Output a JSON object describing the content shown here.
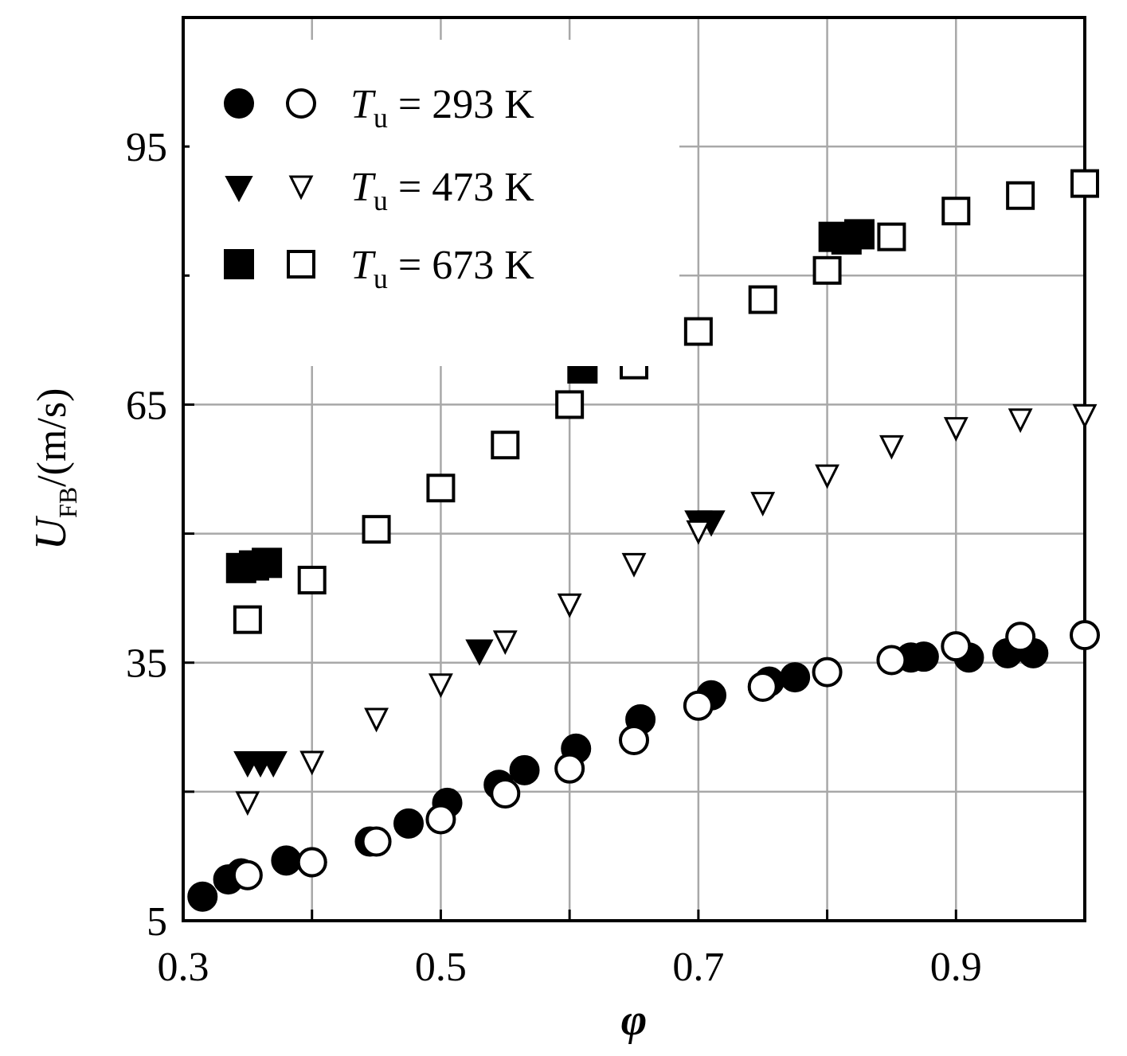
{
  "chart_data": {
    "type": "scatter",
    "xlabel": "φ",
    "ylabel": {
      "main": "U",
      "sub": "FB",
      "rest": "/(m/s)"
    },
    "xlim": [
      0.3,
      1.0
    ],
    "ylim": [
      5,
      110
    ],
    "xticks": [
      0.3,
      0.4,
      0.5,
      0.6,
      0.7,
      0.8,
      0.9,
      1.0
    ],
    "yticks": [
      5,
      20,
      35,
      50,
      65,
      80,
      95,
      110
    ],
    "xtick_labels": [
      "0.3",
      "0.5",
      "0.7",
      "0.9"
    ],
    "ytick_labels": [
      "5",
      "35",
      "65",
      "95"
    ],
    "grid": true,
    "legend_position": "top-left",
    "legend": [
      {
        "var": "T",
        "sub": "u",
        "text": "= 293 K"
      },
      {
        "var": "T",
        "sub": "u",
        "text": "= 473 K"
      },
      {
        "var": "T",
        "sub": "u",
        "text": "= 673 K"
      }
    ],
    "series": [
      {
        "marker": "circle",
        "fill": "filled",
        "x": [
          0.315,
          0.335,
          0.345,
          0.38,
          0.4,
          0.445,
          0.475,
          0.505,
          0.545,
          0.565,
          0.605,
          0.655,
          0.71,
          0.755,
          0.775,
          0.865,
          0.875,
          0.91,
          0.94,
          0.96
        ],
        "y": [
          7.8,
          9.8,
          10.5,
          12.0,
          11.8,
          14.2,
          16.3,
          18.7,
          20.8,
          22.5,
          25.0,
          28.4,
          31.2,
          32.8,
          33.3,
          35.6,
          35.7,
          35.6,
          36.1,
          36.1
        ]
      },
      {
        "marker": "circle",
        "fill": "open",
        "x": [
          0.35,
          0.4,
          0.45,
          0.5,
          0.55,
          0.6,
          0.65,
          0.7,
          0.75,
          0.8,
          0.85,
          0.9,
          0.95,
          1.0
        ],
        "y": [
          10.3,
          11.8,
          14.2,
          16.8,
          19.8,
          22.7,
          26.0,
          30.0,
          32.2,
          33.9,
          35.3,
          36.9,
          38.0,
          38.2
        ]
      },
      {
        "marker": "triangle-down",
        "fill": "filled",
        "x": [
          0.35,
          0.36,
          0.37,
          0.53,
          0.7,
          0.71
        ],
        "y": [
          23.5,
          23.5,
          23.5,
          36.5,
          51.5,
          51.5
        ]
      },
      {
        "marker": "triangle-down",
        "fill": "open",
        "x": [
          0.35,
          0.4,
          0.45,
          0.5,
          0.55,
          0.6,
          0.65,
          0.7,
          0.75,
          0.8,
          0.85,
          0.9,
          0.95,
          1.0
        ],
        "y": [
          18.8,
          23.5,
          28.5,
          32.5,
          37.5,
          41.8,
          46.5,
          50.3,
          53.6,
          56.8,
          60.2,
          62.3,
          63.3,
          63.8
        ]
      },
      {
        "marker": "square",
        "fill": "filled",
        "x": [
          0.345,
          0.355,
          0.365,
          0.61,
          0.805,
          0.815,
          0.825
        ],
        "y": [
          46.0,
          46.3,
          46.6,
          69.2,
          84.5,
          84.2,
          84.8
        ]
      },
      {
        "marker": "square",
        "fill": "open",
        "x": [
          0.35,
          0.4,
          0.45,
          0.5,
          0.55,
          0.6,
          0.65,
          0.7,
          0.75,
          0.8,
          0.85,
          0.9,
          0.95,
          1.0
        ],
        "y": [
          40.0,
          44.6,
          50.5,
          55.3,
          60.3,
          65.0,
          69.6,
          73.5,
          77.2,
          80.6,
          84.5,
          87.5,
          89.3,
          90.7
        ]
      }
    ]
  }
}
